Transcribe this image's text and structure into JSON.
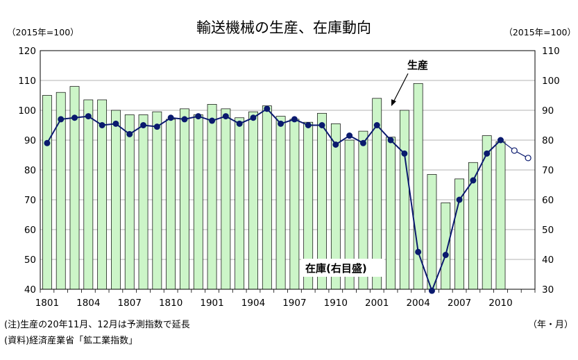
{
  "chart_data": {
    "type": "bar+line",
    "title": "輸送機械の生産、在庫動向",
    "left_axis_unit": "（2015年=100）",
    "right_axis_unit": "（2015年=100）",
    "x_unit": "（年・月）",
    "left_ylim": [
      40,
      120
    ],
    "right_ylim": [
      30,
      110
    ],
    "left_ticks": [
      "120",
      "110",
      "100",
      "90",
      "80",
      "70",
      "60",
      "50",
      "40"
    ],
    "right_ticks": [
      "110",
      "100",
      "90",
      "80",
      "70",
      "60",
      "50",
      "40",
      "30"
    ],
    "x_tick_labels": [
      "1801",
      "1804",
      "1807",
      "1810",
      "1901",
      "1904",
      "1907",
      "1910",
      "2001",
      "2004",
      "2007",
      "2010"
    ],
    "categories": [
      "1801",
      "1802",
      "1803",
      "1804",
      "1805",
      "1806",
      "1807",
      "1808",
      "1809",
      "1810",
      "1811",
      "1812",
      "1901",
      "1902",
      "1903",
      "1904",
      "1905",
      "1906",
      "1907",
      "1908",
      "1909",
      "1910",
      "1911",
      "1912",
      "2001",
      "2002",
      "2003",
      "2004",
      "2005",
      "2006",
      "2007",
      "2008",
      "2009",
      "2010",
      "2011",
      "2012"
    ],
    "series": [
      {
        "name": "生産",
        "axis": "left",
        "kind": "line",
        "color": "#0a1a6e",
        "values": [
          89,
          97,
          97.5,
          98,
          95,
          95.5,
          92,
          95,
          94.5,
          97.5,
          97,
          98,
          96.5,
          98,
          95.5,
          97.5,
          100.5,
          95.5,
          97,
          95,
          95,
          88.5,
          91.5,
          89,
          95,
          90,
          85.5,
          52.5,
          39.5,
          51.5,
          70,
          76.5,
          85.5,
          90,
          86.5,
          84
        ],
        "forecast_from_index": 34
      },
      {
        "name": "在庫",
        "axis": "right",
        "kind": "bar",
        "label": "在庫(右目盛)",
        "color": "#ccf5c8",
        "values": [
          95,
          96,
          98,
          93.5,
          93.5,
          90,
          88.5,
          88.5,
          89.5,
          87,
          90.5,
          88.5,
          92,
          90.5,
          87.5,
          89.5,
          91.5,
          88,
          87,
          86,
          89,
          85.5,
          80,
          83,
          94,
          81,
          90,
          99,
          68.5,
          59,
          67,
          72.5,
          81.5,
          79.5,
          null,
          null
        ]
      }
    ],
    "series_label_production": "生産",
    "series_label_inventory": "在庫(右目盛)",
    "notes": [
      "(注)生産の20年11月、12月は予測指数で延長",
      "(資料)経済産業省「鉱工業指数」"
    ]
  }
}
